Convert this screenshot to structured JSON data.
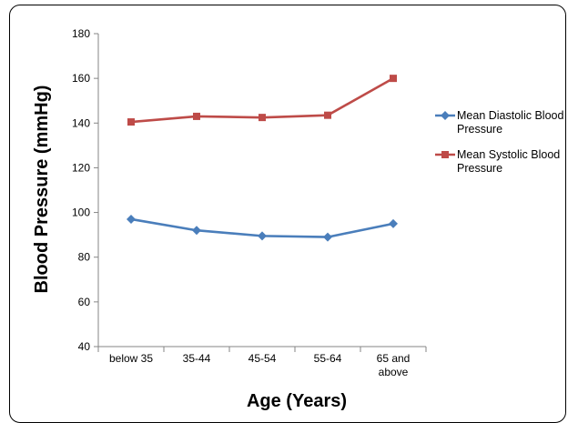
{
  "chart_data": {
    "type": "line",
    "title": "",
    "xlabel": "Age (Years)",
    "ylabel": "Blood Pressure (mmHg)",
    "ylim": [
      40,
      180
    ],
    "yticks": [
      40,
      60,
      80,
      100,
      120,
      140,
      160,
      180
    ],
    "categories": [
      "below 35",
      "35-44",
      "45-54",
      "55-64",
      "65 and above"
    ],
    "category_lines": [
      [
        "below 35"
      ],
      [
        "35-44"
      ],
      [
        "45-54"
      ],
      [
        "55-64"
      ],
      [
        "65 and",
        "above"
      ]
    ],
    "grid": false,
    "legend_position": "right",
    "series": [
      {
        "name": "Mean Diastolic Blood Pressure",
        "name_lines": [
          "Mean Diastolic Blood",
          "Pressure"
        ],
        "marker": "diamond",
        "color": "#4a7ebb",
        "values": [
          97,
          92,
          89.5,
          89,
          95
        ]
      },
      {
        "name": "Mean Systolic Blood Pressure",
        "name_lines": [
          "Mean Systolic Blood",
          "Pressure"
        ],
        "marker": "square",
        "color": "#be4b48",
        "values": [
          140.5,
          143,
          142.5,
          143.5,
          160
        ]
      }
    ]
  }
}
